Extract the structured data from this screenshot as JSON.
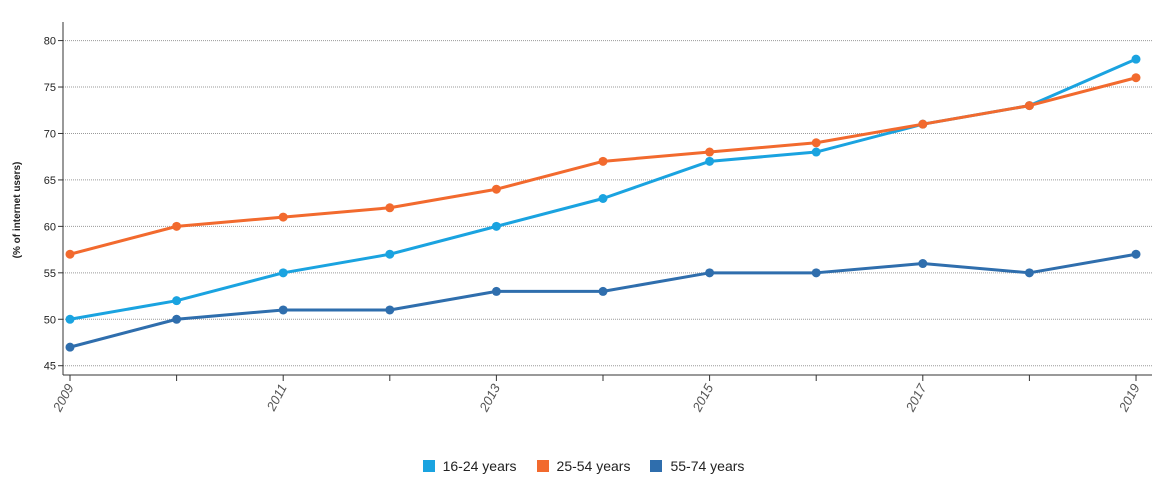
{
  "chart_data": {
    "type": "line",
    "title": "",
    "xlabel": "",
    "ylabel": "(% of internet users)",
    "x": [
      2009,
      2010,
      2011,
      2012,
      2013,
      2014,
      2015,
      2016,
      2017,
      2018,
      2019
    ],
    "x_tick_labels": [
      "2009",
      "2011",
      "2013",
      "2015",
      "2017",
      "2019"
    ],
    "y_ticks": [
      45,
      50,
      55,
      60,
      65,
      70,
      75,
      80
    ],
    "ylim": [
      44,
      82
    ],
    "grid": "horizontal dotted",
    "legend_position": "bottom",
    "series": [
      {
        "name": "16-24 years",
        "color": "#1aa3e0",
        "values": [
          50,
          52,
          55,
          57,
          60,
          63,
          67,
          68,
          71,
          73,
          78
        ]
      },
      {
        "name": "25-54 years",
        "color": "#f26a2e",
        "values": [
          57,
          60,
          61,
          62,
          64,
          67,
          68,
          69,
          71,
          73,
          76
        ]
      },
      {
        "name": "55-74 years",
        "color": "#2f6ead",
        "values": [
          47,
          50,
          51,
          51,
          53,
          53,
          55,
          55,
          56,
          55,
          57
        ]
      }
    ]
  }
}
